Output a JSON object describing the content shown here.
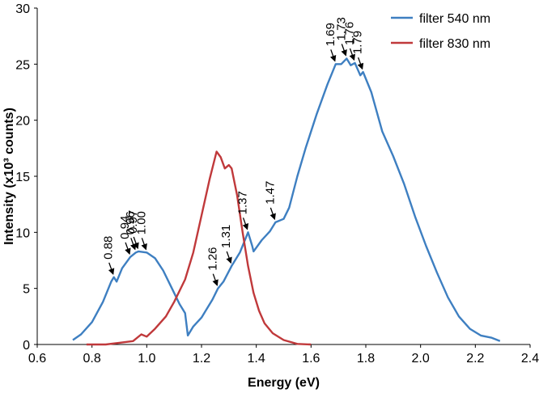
{
  "chart_data": {
    "type": "line",
    "title": "",
    "xlabel": "Energy (eV)",
    "ylabel": "Intensity (x10³ counts)",
    "xlim": [
      0.6,
      2.4
    ],
    "ylim": [
      0,
      30
    ],
    "x_ticks": [
      "0.6",
      "0.8",
      "1.0",
      "1.2",
      "1.4",
      "1.6",
      "1.8",
      "2.0",
      "2.2",
      "2.4"
    ],
    "y_ticks": [
      "0",
      "5",
      "10",
      "15",
      "20",
      "25",
      "30"
    ],
    "grid": false,
    "legend_position": "top-right",
    "series": [
      {
        "name": "filter 540 nm",
        "color": "#3e7fc1",
        "points": [
          [
            0.73,
            0.4
          ],
          [
            0.76,
            0.9
          ],
          [
            0.8,
            2.0
          ],
          [
            0.84,
            3.8
          ],
          [
            0.87,
            5.6
          ],
          [
            0.88,
            6.0
          ],
          [
            0.89,
            5.6
          ],
          [
            0.91,
            6.8
          ],
          [
            0.94,
            7.8
          ],
          [
            0.96,
            8.2
          ],
          [
            0.97,
            8.3
          ],
          [
            1.0,
            8.2
          ],
          [
            1.03,
            7.7
          ],
          [
            1.06,
            6.6
          ],
          [
            1.09,
            5.1
          ],
          [
            1.12,
            3.6
          ],
          [
            1.14,
            2.8
          ],
          [
            1.15,
            0.8
          ],
          [
            1.17,
            1.6
          ],
          [
            1.2,
            2.4
          ],
          [
            1.24,
            4.0
          ],
          [
            1.26,
            5.0
          ],
          [
            1.28,
            5.6
          ],
          [
            1.31,
            7.0
          ],
          [
            1.34,
            8.2
          ],
          [
            1.37,
            10.0
          ],
          [
            1.385,
            8.8
          ],
          [
            1.39,
            8.3
          ],
          [
            1.42,
            9.3
          ],
          [
            1.45,
            10.1
          ],
          [
            1.47,
            10.9
          ],
          [
            1.5,
            11.2
          ],
          [
            1.52,
            12.2
          ],
          [
            1.55,
            15.0
          ],
          [
            1.58,
            17.5
          ],
          [
            1.62,
            20.5
          ],
          [
            1.66,
            23.2
          ],
          [
            1.69,
            25.0
          ],
          [
            1.71,
            25.0
          ],
          [
            1.73,
            25.5
          ],
          [
            1.745,
            24.9
          ],
          [
            1.76,
            25.1
          ],
          [
            1.78,
            24.0
          ],
          [
            1.79,
            24.3
          ],
          [
            1.82,
            22.5
          ],
          [
            1.86,
            19.0
          ],
          [
            1.9,
            16.8
          ],
          [
            1.94,
            14.3
          ],
          [
            1.98,
            11.4
          ],
          [
            2.02,
            8.8
          ],
          [
            2.06,
            6.4
          ],
          [
            2.1,
            4.2
          ],
          [
            2.14,
            2.5
          ],
          [
            2.18,
            1.4
          ],
          [
            2.22,
            0.8
          ],
          [
            2.26,
            0.6
          ],
          [
            2.29,
            0.3
          ]
        ]
      },
      {
        "name": "filter 830 nm",
        "color": "#c0393b",
        "points": [
          [
            0.78,
            0.0
          ],
          [
            0.85,
            0.0
          ],
          [
            0.9,
            0.15
          ],
          [
            0.95,
            0.3
          ],
          [
            0.98,
            0.9
          ],
          [
            1.0,
            0.7
          ],
          [
            1.03,
            1.4
          ],
          [
            1.07,
            2.5
          ],
          [
            1.1,
            3.8
          ],
          [
            1.14,
            5.8
          ],
          [
            1.17,
            8.2
          ],
          [
            1.2,
            11.5
          ],
          [
            1.23,
            14.8
          ],
          [
            1.255,
            17.2
          ],
          [
            1.27,
            16.7
          ],
          [
            1.285,
            15.7
          ],
          [
            1.3,
            16.0
          ],
          [
            1.31,
            15.7
          ],
          [
            1.33,
            13.3
          ],
          [
            1.35,
            10.0
          ],
          [
            1.37,
            7.0
          ],
          [
            1.39,
            4.6
          ],
          [
            1.41,
            3.0
          ],
          [
            1.43,
            1.9
          ],
          [
            1.46,
            1.0
          ],
          [
            1.5,
            0.4
          ],
          [
            1.55,
            0.05
          ],
          [
            1.6,
            0.0
          ]
        ]
      }
    ],
    "annotations": [
      {
        "text": "0.88",
        "x": 0.88,
        "y": 6.0
      },
      {
        "text": "0.94",
        "x": 0.94,
        "y": 7.8
      },
      {
        "text": "0.96",
        "x": 0.96,
        "y": 8.2
      },
      {
        "text": "0.97",
        "x": 0.97,
        "y": 8.3
      },
      {
        "text": "1.00",
        "x": 1.0,
        "y": 8.2
      },
      {
        "text": "1.26",
        "x": 1.26,
        "y": 5.0
      },
      {
        "text": "1.31",
        "x": 1.31,
        "y": 7.0
      },
      {
        "text": "1.37",
        "x": 1.37,
        "y": 10.0
      },
      {
        "text": "1.47",
        "x": 1.47,
        "y": 10.9
      },
      {
        "text": "1.69",
        "x": 1.69,
        "y": 25.0
      },
      {
        "text": "1.73",
        "x": 1.73,
        "y": 25.5
      },
      {
        "text": "1.76",
        "x": 1.76,
        "y": 25.1
      },
      {
        "text": "1.79",
        "x": 1.79,
        "y": 24.3
      }
    ]
  }
}
